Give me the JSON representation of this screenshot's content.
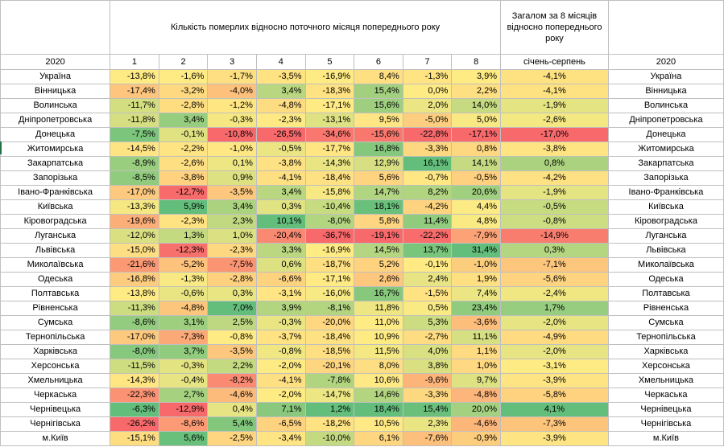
{
  "header": {
    "title": "Кількість померлих відносно поточного місяця попереднього року",
    "total_title": "Загалом за 8 місяців відносно попереднього року"
  },
  "subheader": {
    "year_left": "2020",
    "months": [
      "1",
      "2",
      "3",
      "4",
      "5",
      "6",
      "7",
      "8"
    ],
    "total_label": "січень-серпень",
    "year_right": "2020"
  },
  "rows": [
    {
      "region": "Україна",
      "v": [
        "-13,8%",
        "-1,6%",
        "-1,7%",
        "-3,5%",
        "-16,9%",
        "8,4%",
        "-1,3%",
        "3,9%"
      ],
      "total": "-4,1%"
    },
    {
      "region": "Вінницька",
      "v": [
        "-17,4%",
        "-3,2%",
        "-4,0%",
        "3,4%",
        "-18,3%",
        "15,4%",
        "0,0%",
        "2,2%"
      ],
      "total": "-4,1%"
    },
    {
      "region": "Волинська",
      "v": [
        "-11,7%",
        "-2,8%",
        "-1,2%",
        "-4,8%",
        "-17,1%",
        "15,6%",
        "2,0%",
        "14,0%"
      ],
      "total": "-1,9%"
    },
    {
      "region": "Дніпропетровська",
      "v": [
        "-11,8%",
        "3,4%",
        "-0,3%",
        "-2,3%",
        "-13,1%",
        "9,5%",
        "-5,0%",
        "5,0%"
      ],
      "total": "-2,6%"
    },
    {
      "region": "Донецька",
      "v": [
        "-7,5%",
        "-0,1%",
        "-10,8%",
        "-26,5%",
        "-34,6%",
        "-15,6%",
        "-22,8%",
        "-17,1%"
      ],
      "total": "-17,0%"
    },
    {
      "region": "Житомирська",
      "v": [
        "-14,5%",
        "-2,2%",
        "-1,0%",
        "-0,5%",
        "-17,7%",
        "16,8%",
        "-3,3%",
        "0,8%"
      ],
      "total": "-3,8%"
    },
    {
      "region": "Закарпатська",
      "v": [
        "-8,9%",
        "-2,6%",
        "0,1%",
        "-3,8%",
        "-14,3%",
        "12,9%",
        "16,1%",
        "14,1%"
      ],
      "total": "0,8%"
    },
    {
      "region": "Запорізька",
      "v": [
        "-8,5%",
        "-3,8%",
        "0,9%",
        "-4,1%",
        "-18,4%",
        "5,6%",
        "-0,7%",
        "-0,5%"
      ],
      "total": "-4,2%"
    },
    {
      "region": "Івано-Франківська",
      "v": [
        "-17,0%",
        "-12,7%",
        "-3,5%",
        "3,4%",
        "-15,8%",
        "14,7%",
        "8,2%",
        "20,6%"
      ],
      "total": "-1,9%"
    },
    {
      "region": "Київська",
      "v": [
        "-13,3%",
        "5,9%",
        "3,4%",
        "0,3%",
        "-10,4%",
        "18,1%",
        "-4,2%",
        "4,4%"
      ],
      "total": "-0,5%"
    },
    {
      "region": "Кіровоградська",
      "v": [
        "-19,6%",
        "-2,3%",
        "2,3%",
        "10,1%",
        "-8,0%",
        "5,8%",
        "11,4%",
        "4,8%"
      ],
      "total": "-0,8%"
    },
    {
      "region": "Луганська",
      "v": [
        "-12,0%",
        "1,3%",
        "1,0%",
        "-20,4%",
        "-36,7%",
        "-19,1%",
        "-22,2%",
        "-7,9%"
      ],
      "total": "-14,9%"
    },
    {
      "region": "Львівська",
      "v": [
        "-15,0%",
        "-12,3%",
        "-2,3%",
        "3,3%",
        "-16,9%",
        "14,5%",
        "13,7%",
        "31,4%"
      ],
      "total": "0,3%"
    },
    {
      "region": "Миколаївська",
      "v": [
        "-21,6%",
        "-5,2%",
        "-7,5%",
        "0,6%",
        "-18,7%",
        "5,2%",
        "-0,1%",
        "-1,0%"
      ],
      "total": "-7,1%"
    },
    {
      "region": "Одеська",
      "v": [
        "-16,8%",
        "-1,3%",
        "-2,8%",
        "-6,6%",
        "-17,1%",
        "2,6%",
        "2,4%",
        "1,9%"
      ],
      "total": "-5,6%"
    },
    {
      "region": "Полтавська",
      "v": [
        "-13,8%",
        "-0,6%",
        "0,3%",
        "-3,1%",
        "-16,0%",
        "16,7%",
        "-1,5%",
        "7,4%"
      ],
      "total": "-2,4%"
    },
    {
      "region": "Рівненська",
      "v": [
        "-11,3%",
        "-4,8%",
        "7,0%",
        "3,9%",
        "-8,1%",
        "11,8%",
        "0,5%",
        "23,4%"
      ],
      "total": "1,7%"
    },
    {
      "region": "Сумська",
      "v": [
        "-8,6%",
        "3,1%",
        "2,5%",
        "-0,3%",
        "-20,0%",
        "11,0%",
        "5,3%",
        "-3,6%"
      ],
      "total": "-2,0%"
    },
    {
      "region": "Тернопільська",
      "v": [
        "-17,0%",
        "-7,3%",
        "-0,8%",
        "-3,7%",
        "-18,4%",
        "10,9%",
        "-2,7%",
        "11,1%"
      ],
      "total": "-4,9%"
    },
    {
      "region": "Харківська",
      "v": [
        "-8,0%",
        "3,7%",
        "-3,5%",
        "-0,8%",
        "-18,5%",
        "11,5%",
        "4,0%",
        "1,1%"
      ],
      "total": "-2,0%"
    },
    {
      "region": "Херсонська",
      "v": [
        "-11,5%",
        "-0,3%",
        "2,2%",
        "-2,0%",
        "-20,1%",
        "8,0%",
        "3,8%",
        "1,0%"
      ],
      "total": "-3,1%"
    },
    {
      "region": "Хмельницька",
      "v": [
        "-14,3%",
        "-0,4%",
        "-8,2%",
        "-4,1%",
        "-7,8%",
        "10,6%",
        "-9,6%",
        "9,7%"
      ],
      "total": "-3,9%"
    },
    {
      "region": "Черкаська",
      "v": [
        "-22,3%",
        "2,7%",
        "-4,6%",
        "-2,0%",
        "-14,7%",
        "14,6%",
        "-3,3%",
        "-4,8%"
      ],
      "total": "-5,8%"
    },
    {
      "region": "Чернівецька",
      "v": [
        "-6,3%",
        "-12,9%",
        "0,4%",
        "7,1%",
        "1,2%",
        "18,4%",
        "15,4%",
        "20,0%"
      ],
      "total": "4,1%"
    },
    {
      "region": "Чернігівська",
      "v": [
        "-26,2%",
        "-8,6%",
        "5,4%",
        "-6,5%",
        "-18,2%",
        "10,5%",
        "2,3%",
        "-4,6%"
      ],
      "total": "-7,3%"
    },
    {
      "region": "м.Київ",
      "v": [
        "-15,1%",
        "5,6%",
        "-2,5%",
        "-3,4%",
        "-10,0%",
        "6,1%",
        "-7,6%",
        "-0,9%"
      ],
      "total": "-3,9%"
    }
  ],
  "colors": {
    "low": "#f8696b",
    "mid": "#ffeb84",
    "high": "#63be7b",
    "grid": "#bfbfbf",
    "marker": "#217346"
  }
}
